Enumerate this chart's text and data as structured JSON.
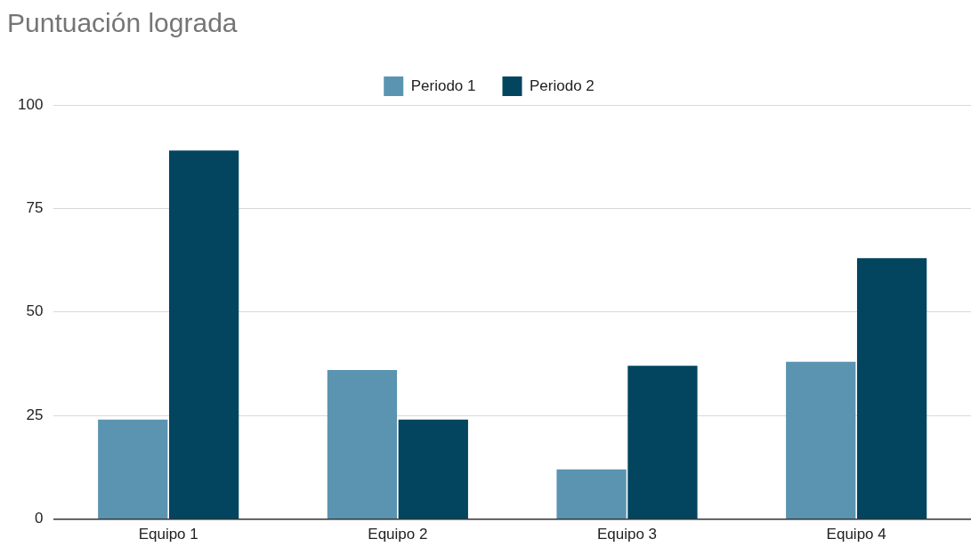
{
  "chart_data": {
    "type": "bar",
    "title": "Puntuación lograda",
    "categories": [
      "Equipo 1",
      "Equipo 2",
      "Equipo 3",
      "Equipo 4"
    ],
    "series": [
      {
        "name": "Periodo 1",
        "color": "#5b94b1",
        "values": [
          24,
          36,
          12,
          38
        ]
      },
      {
        "name": "Periodo 2",
        "color": "#03445f",
        "values": [
          89,
          24,
          37,
          63
        ]
      }
    ],
    "ylim": [
      0,
      100
    ],
    "yticks": [
      0,
      25,
      50,
      75,
      100
    ],
    "grid": "y",
    "legend": "top"
  }
}
